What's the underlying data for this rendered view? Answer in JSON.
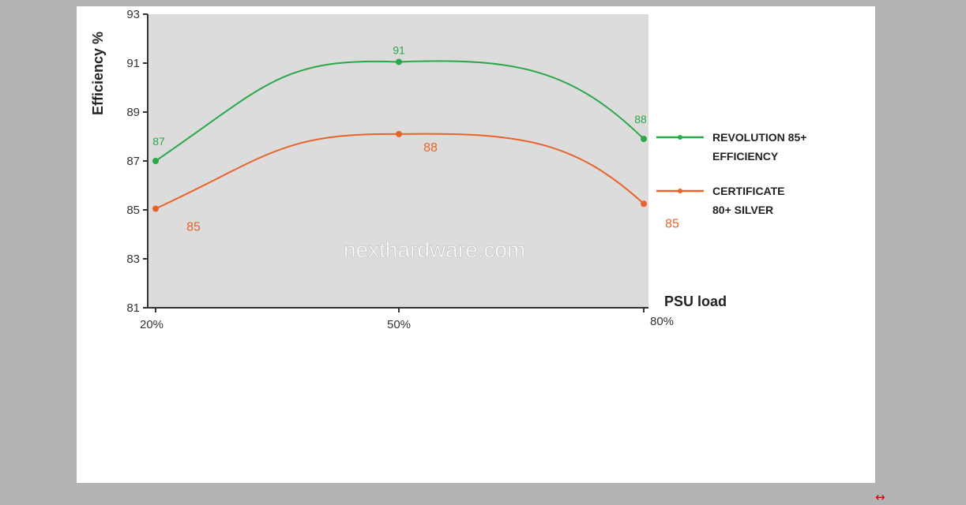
{
  "chart_data": {
    "type": "line",
    "xlabel": "PSU load",
    "ylabel": "Efficiency %",
    "categories": [
      "20%",
      "50%",
      "80%"
    ],
    "ylim": [
      81,
      93
    ],
    "yticks": [
      81,
      83,
      85,
      87,
      89,
      91,
      93
    ],
    "grid": false,
    "legend_position": "right",
    "watermark": "nexthardware.com",
    "series": [
      {
        "name": "REVOLUTION 85+ EFFICIENCY",
        "legend_lines": [
          "REVOLUTION 85+",
          "EFFICIENCY"
        ],
        "values": [
          87,
          91,
          88
        ],
        "plotted_values": [
          87,
          91.05,
          87.9
        ],
        "labels": [
          "87",
          "91",
          "88"
        ],
        "color": "#2ba84a"
      },
      {
        "name": "CERTIFICATE 80+ SILVER",
        "legend_lines": [
          "CERTIFICATE",
          "80+ SILVER"
        ],
        "values": [
          85,
          88,
          85
        ],
        "plotted_values": [
          85.05,
          88.1,
          85.25
        ],
        "labels": [
          "85",
          "88",
          "85"
        ],
        "color": "#e8632b"
      }
    ]
  },
  "ui": {
    "expand_icon": "↔",
    "expand_icon_name": "expand-arrows-icon",
    "expand_icon_color": "#cc0000"
  }
}
